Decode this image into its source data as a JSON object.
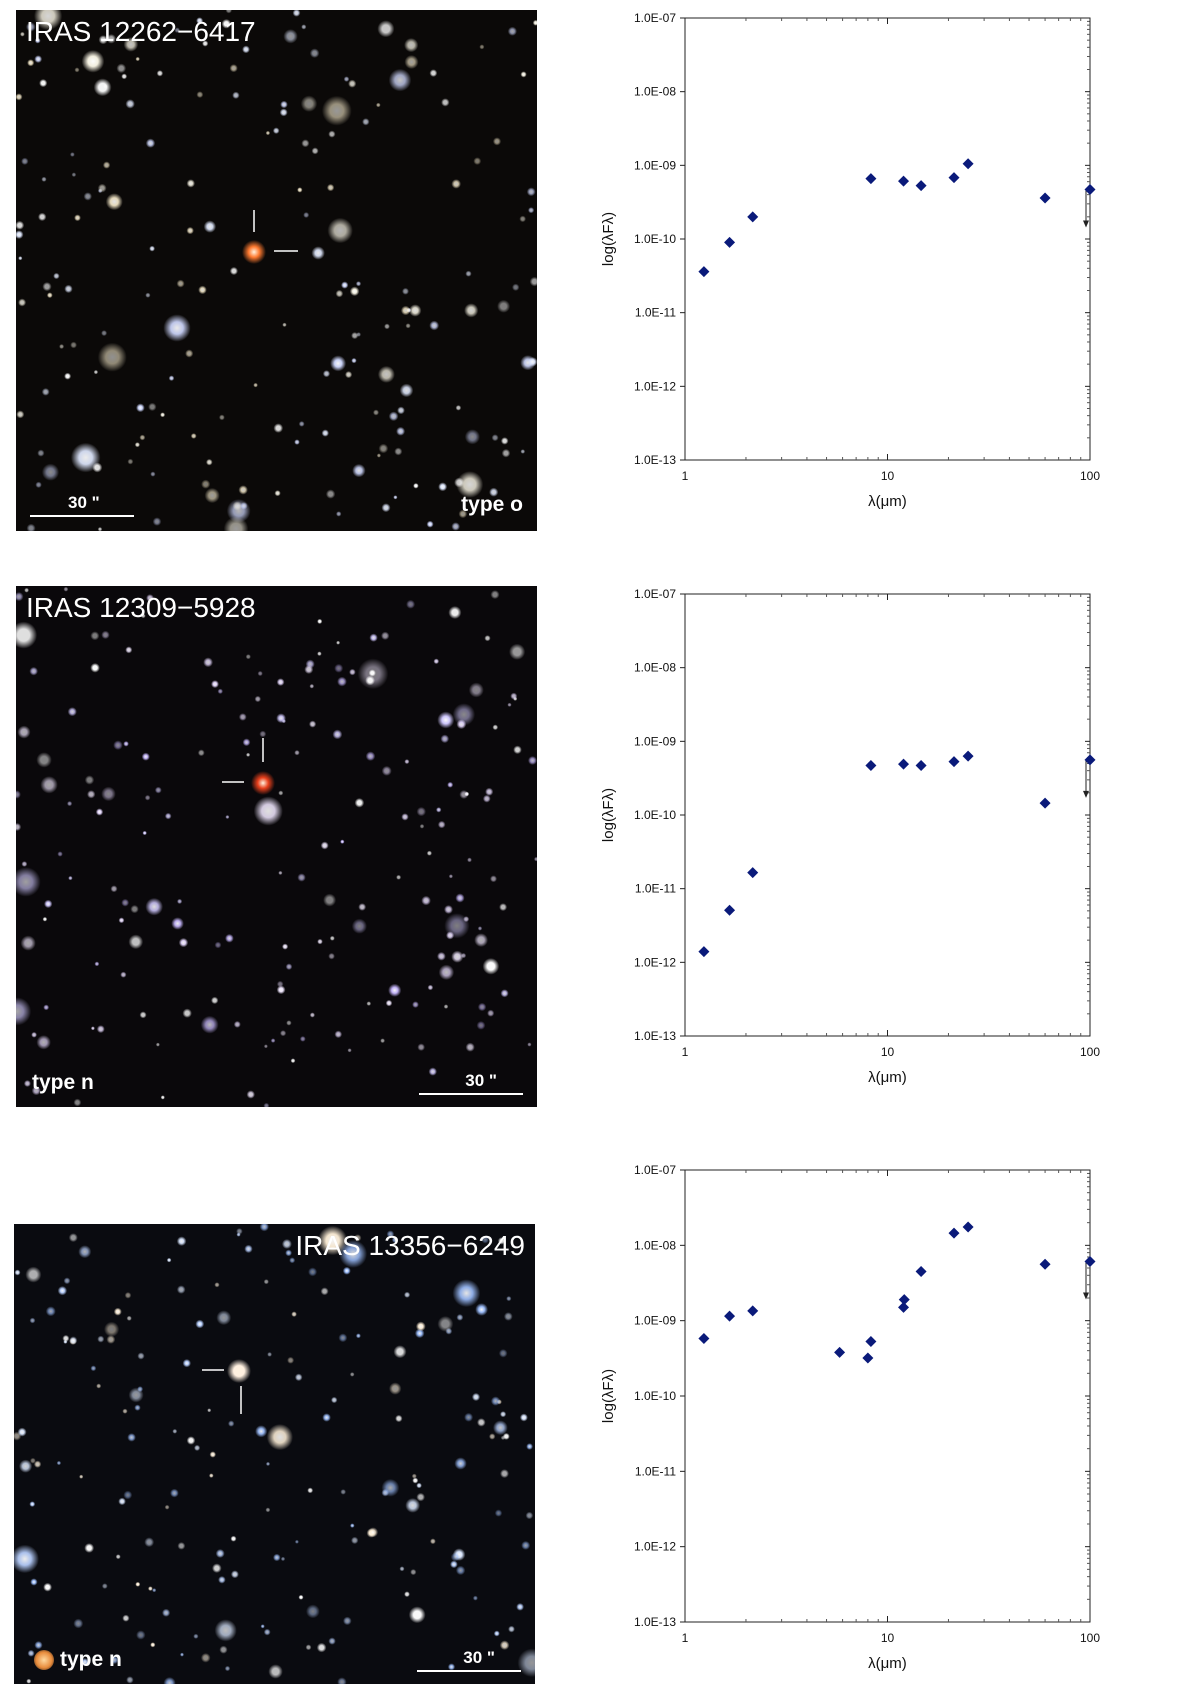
{
  "panels": [
    {
      "image": {
        "title": "IRAS 12262−6417",
        "type_label": "type o",
        "scale_label": "30 \"",
        "title_pos": "top-left",
        "type_pos": "bottom-right",
        "scale_pos": "bottom-left",
        "has_type_dot": false
      }
    },
    {
      "image": {
        "title": "IRAS 12309−5928",
        "type_label": "type n",
        "scale_label": "30 \"",
        "title_pos": "top-left",
        "type_pos": "bottom-left",
        "scale_pos": "bottom-right",
        "has_type_dot": false
      }
    },
    {
      "image": {
        "title": "IRAS 13356−6249",
        "type_label": "type n",
        "scale_label": "30 \"",
        "title_pos": "top-right",
        "type_pos": "bottom-left",
        "scale_pos": "bottom-right",
        "has_type_dot": true
      }
    }
  ],
  "chart_data": [
    {
      "type": "scatter",
      "xscale": "log",
      "yscale": "log",
      "xlabel": "λ(μm)",
      "ylabel": "log(λFλ)",
      "xlim": [
        1,
        100
      ],
      "ylim": [
        1e-13,
        1e-07
      ],
      "xticks": [
        "1",
        "10",
        "100"
      ],
      "yticks": [
        "1.0E-13",
        "1.0E-12",
        "1.0E-11",
        "1.0E-10",
        "1.0E-09",
        "1.0E-08",
        "1.0E-07"
      ],
      "marker_color": "#0a1a7a",
      "points": [
        {
          "x": 1.24,
          "y": 3.6e-11
        },
        {
          "x": 1.66,
          "y": 9e-11
        },
        {
          "x": 2.16,
          "y": 2e-10
        },
        {
          "x": 8.28,
          "y": 6.6e-10
        },
        {
          "x": 12.0,
          "y": 6.1e-10
        },
        {
          "x": 14.65,
          "y": 5.3e-10
        },
        {
          "x": 21.3,
          "y": 6.8e-10
        },
        {
          "x": 25.0,
          "y": 1.05e-09
        },
        {
          "x": 60.0,
          "y": 3.6e-10
        },
        {
          "x": 100.0,
          "y": 4.7e-10
        }
      ],
      "upper_limits": [
        {
          "x": 100.0,
          "y": 4.7e-10
        }
      ]
    },
    {
      "type": "scatter",
      "xscale": "log",
      "yscale": "log",
      "xlabel": "λ(μm)",
      "ylabel": "log(λFλ)",
      "xlim": [
        1,
        100
      ],
      "ylim": [
        1e-13,
        1e-07
      ],
      "xticks": [
        "1",
        "10",
        "100"
      ],
      "yticks": [
        "1.0E-13",
        "1.0E-12",
        "1.0E-11",
        "1.0E-10",
        "1.0E-09",
        "1.0E-08",
        "1.0E-07"
      ],
      "marker_color": "#0a1a7a",
      "points": [
        {
          "x": 1.24,
          "y": 1.4e-12
        },
        {
          "x": 1.66,
          "y": 5.1e-12
        },
        {
          "x": 2.16,
          "y": 1.65e-11
        },
        {
          "x": 8.28,
          "y": 4.7e-10
        },
        {
          "x": 12.0,
          "y": 4.9e-10
        },
        {
          "x": 14.65,
          "y": 4.7e-10
        },
        {
          "x": 21.3,
          "y": 5.3e-10
        },
        {
          "x": 25.0,
          "y": 6.3e-10
        },
        {
          "x": 60.0,
          "y": 1.45e-10
        },
        {
          "x": 100.0,
          "y": 5.6e-10
        }
      ],
      "upper_limits": [
        {
          "x": 100.0,
          "y": 5.6e-10
        }
      ]
    },
    {
      "type": "scatter",
      "xscale": "log",
      "yscale": "log",
      "xlabel": "λ(μm)",
      "ylabel": "log(λFλ)",
      "xlim": [
        1,
        100
      ],
      "ylim": [
        1e-13,
        1e-07
      ],
      "xticks": [
        "1",
        "10",
        "100"
      ],
      "yticks": [
        "1.0E-13",
        "1.0E-12",
        "1.0E-11",
        "1.0E-10",
        "1.0E-09",
        "1.0E-08",
        "1.0E-07"
      ],
      "marker_color": "#0a1a7a",
      "points": [
        {
          "x": 1.24,
          "y": 5.8e-10
        },
        {
          "x": 1.66,
          "y": 1.15e-09
        },
        {
          "x": 2.16,
          "y": 1.35e-09
        },
        {
          "x": 5.8,
          "y": 3.8e-10
        },
        {
          "x": 8.0,
          "y": 3.2e-10
        },
        {
          "x": 8.28,
          "y": 5.3e-10
        },
        {
          "x": 12.0,
          "y": 1.5e-09
        },
        {
          "x": 12.1,
          "y": 1.9e-09
        },
        {
          "x": 14.65,
          "y": 4.5e-09
        },
        {
          "x": 21.3,
          "y": 1.45e-08
        },
        {
          "x": 25.0,
          "y": 1.75e-08
        },
        {
          "x": 60.0,
          "y": 5.6e-09
        },
        {
          "x": 100.0,
          "y": 6.1e-09
        }
      ],
      "upper_limits": [
        {
          "x": 100.0,
          "y": 6.1e-09
        }
      ]
    }
  ]
}
